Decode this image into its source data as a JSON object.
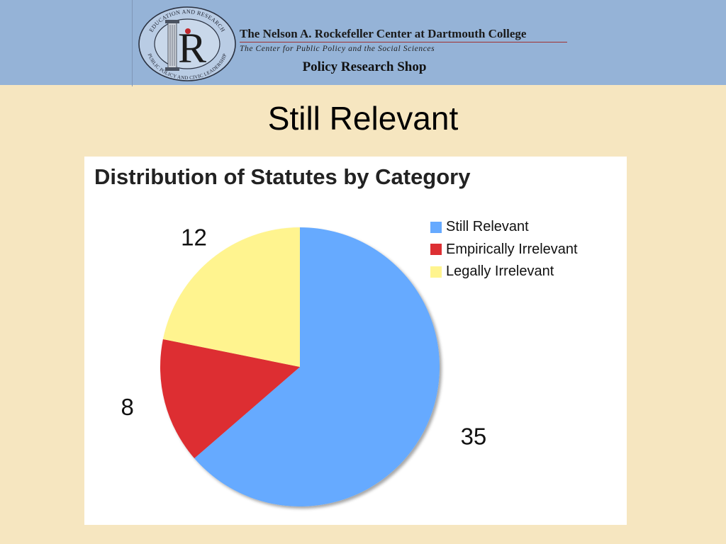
{
  "header": {
    "org_name": "The Nelson A. Rockefeller Center at Dartmouth College",
    "tagline": "The Center for Public Policy and the Social Sciences",
    "shop_name": "Policy Research Shop",
    "seal": {
      "letter": "R",
      "ring_text_top": "EDUCATION AND RESEARCH",
      "ring_text_bottom": "PUBLIC POLICY AND CIVIC LEADERSHIP"
    }
  },
  "slide": {
    "title": "Still Relevant"
  },
  "chart_data": {
    "type": "pie",
    "title": "Distribution of Statutes by Category",
    "categories": [
      "Still Relevant",
      "Empirically Irrelevant",
      "Legally Irrelevant"
    ],
    "values": [
      35,
      8,
      12
    ],
    "colors": [
      "#66aaff",
      "#dd2f33",
      "#fff48f"
    ],
    "legend_position": "top-right",
    "start_angle": "12 o'clock",
    "direction": "clockwise"
  }
}
